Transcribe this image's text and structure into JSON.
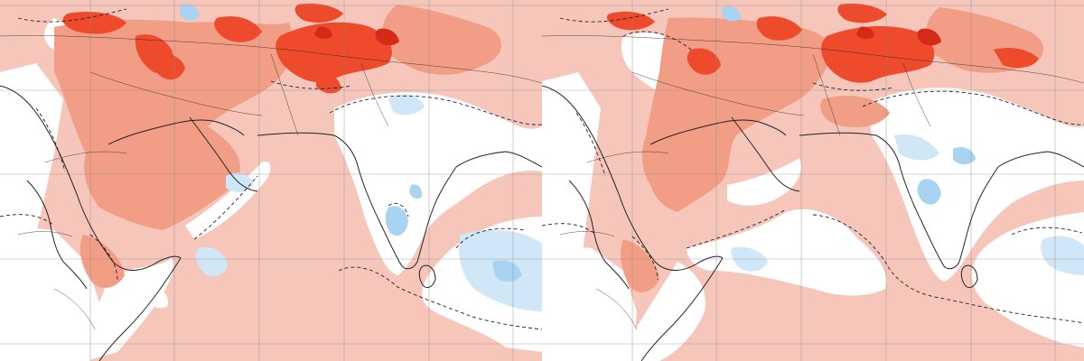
{
  "colors": {
    "background_anomaly": "#f7c6bb",
    "moderate_warm": "#f29d86",
    "strong_warm": "#ee4a2c",
    "very_strong_warm": "#d42a17",
    "neutral": "#ffffff",
    "weak_cool": "#cfe7f6",
    "moderate_cool": "#a8d4f1",
    "coastline": "#222222",
    "grid": "#8a8a8a"
  },
  "panels": [
    {
      "id": "left",
      "visible_text": ""
    },
    {
      "id": "right",
      "visible_text": ""
    }
  ],
  "features": {
    "contour_style": "dashed",
    "graticule": "on",
    "legend": "none"
  }
}
